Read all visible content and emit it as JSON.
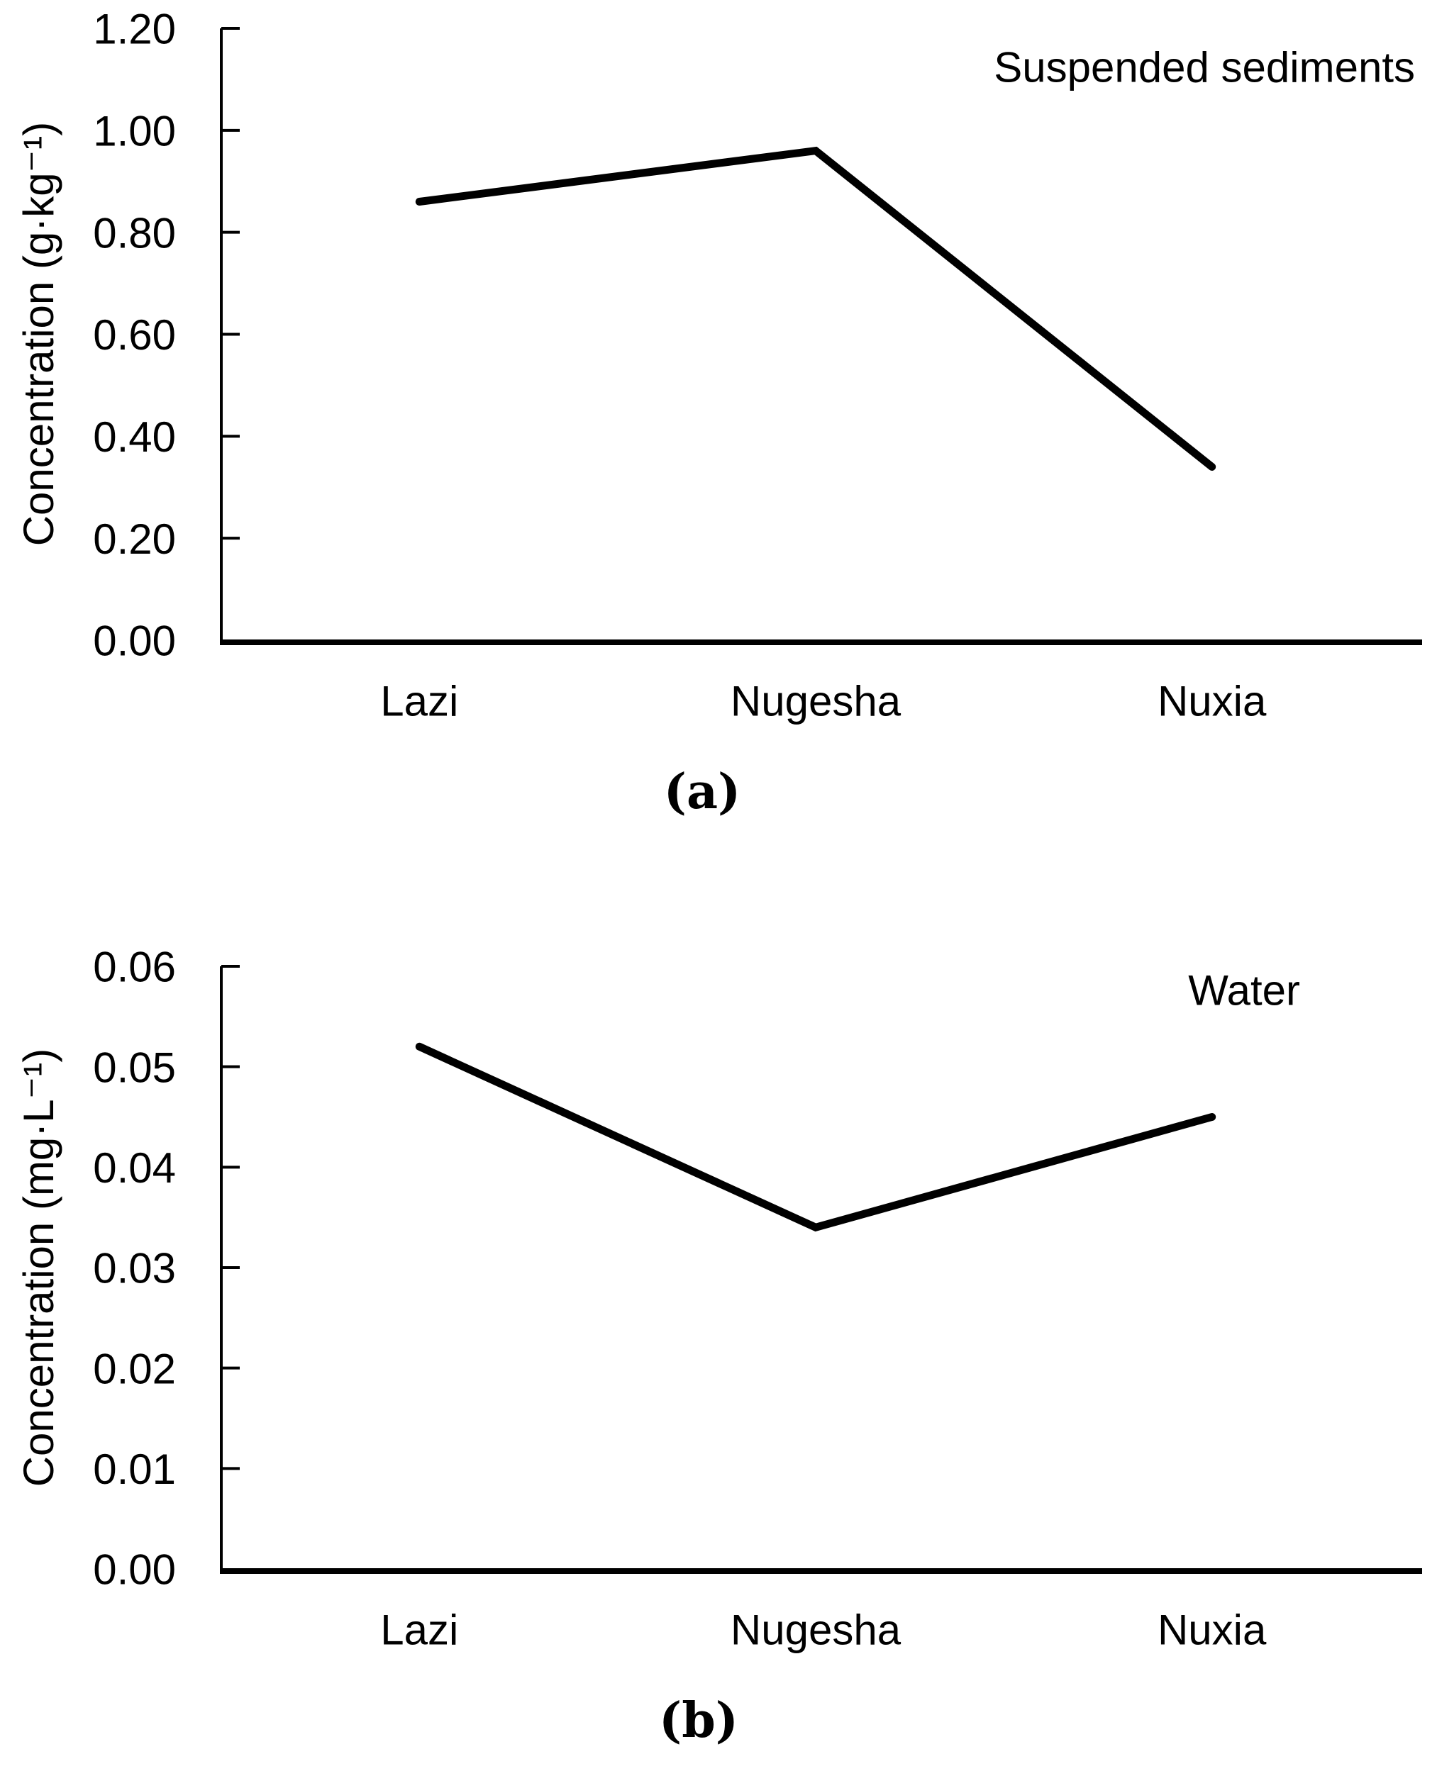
{
  "figure": {
    "background": "#ffffff",
    "ink_color": "#000000"
  },
  "chart_data": [
    {
      "id": "a",
      "type": "line",
      "title": "Suspended sediments",
      "caption": "(a)",
      "ylabel": "Concentration (g·kg⁻¹)",
      "xlabel": "",
      "categories": [
        "Lazi",
        "Nugesha",
        "Nuxia"
      ],
      "values": [
        0.86,
        0.96,
        0.34
      ],
      "ylim": [
        0,
        1.2
      ],
      "ytick_labels": [
        "0.00",
        "0.20",
        "0.40",
        "0.60",
        "0.80",
        "1.00",
        "1.20"
      ],
      "line_color": "#000000",
      "grid": "off",
      "legend": "none"
    },
    {
      "id": "b",
      "type": "line",
      "title": "Water",
      "caption": "(b)",
      "ylabel": "Concentration (mg·L⁻¹)",
      "xlabel": "",
      "categories": [
        "Lazi",
        "Nugesha",
        "Nuxia"
      ],
      "values": [
        0.052,
        0.034,
        0.045
      ],
      "ylim": [
        0,
        0.06
      ],
      "ytick_labels": [
        "0.00",
        "0.01",
        "0.02",
        "0.03",
        "0.04",
        "0.05",
        "0.06"
      ],
      "line_color": "#000000",
      "grid": "off",
      "legend": "none"
    }
  ]
}
